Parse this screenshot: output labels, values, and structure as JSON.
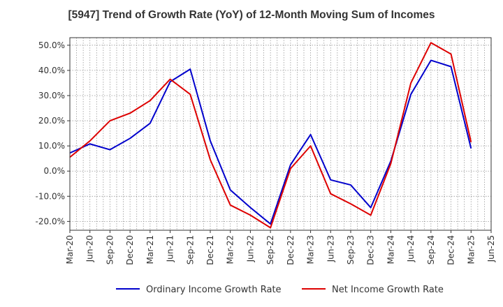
{
  "chart_data": {
    "type": "line",
    "title": "[5947]  Trend of Growth Rate (YoY) of 12-Month Moving Sum of Incomes",
    "xlabel": "",
    "ylabel": "",
    "ylim": [
      -23.5,
      53
    ],
    "y_ticks": [
      "50.0%",
      "40.0%",
      "30.0%",
      "20.0%",
      "10.0%",
      "0.0%",
      "-10.0%",
      "-20.0%"
    ],
    "y_tick_values": [
      50,
      40,
      30,
      20,
      10,
      0,
      -10,
      -20
    ],
    "x_ticks": [
      "Mar-20",
      "Jun-20",
      "Sep-20",
      "Dec-20",
      "Mar-21",
      "Jun-21",
      "Sep-21",
      "Dec-21",
      "Mar-22",
      "Jun-22",
      "Sep-22",
      "Dec-22",
      "Mar-23",
      "Jun-23",
      "Sep-23",
      "Dec-23",
      "Mar-24",
      "Jun-24",
      "Sep-24",
      "Dec-24",
      "Mar-25",
      "Jun-25"
    ],
    "grid": true,
    "legend_position": "bottom",
    "series": [
      {
        "name": "Ordinary Income Growth Rate",
        "color": "#0000cc",
        "values": [
          7.2,
          10.8,
          8.5,
          13.0,
          19.0,
          35.5,
          40.5,
          12.0,
          -7.5,
          -14.5,
          -21.0,
          2.5,
          14.5,
          -3.5,
          -5.5,
          -14.5,
          4.0,
          30.5,
          44.0,
          41.5,
          9.0
        ]
      },
      {
        "name": "Net Income Growth Rate",
        "color": "#dd0000",
        "values": [
          5.5,
          12.0,
          20.0,
          23.0,
          28.0,
          36.5,
          30.5,
          4.5,
          -13.5,
          -17.5,
          -22.5,
          1.0,
          10.0,
          -9.0,
          -13.0,
          -17.5,
          3.0,
          35.0,
          51.0,
          46.5,
          11.5
        ]
      }
    ]
  }
}
